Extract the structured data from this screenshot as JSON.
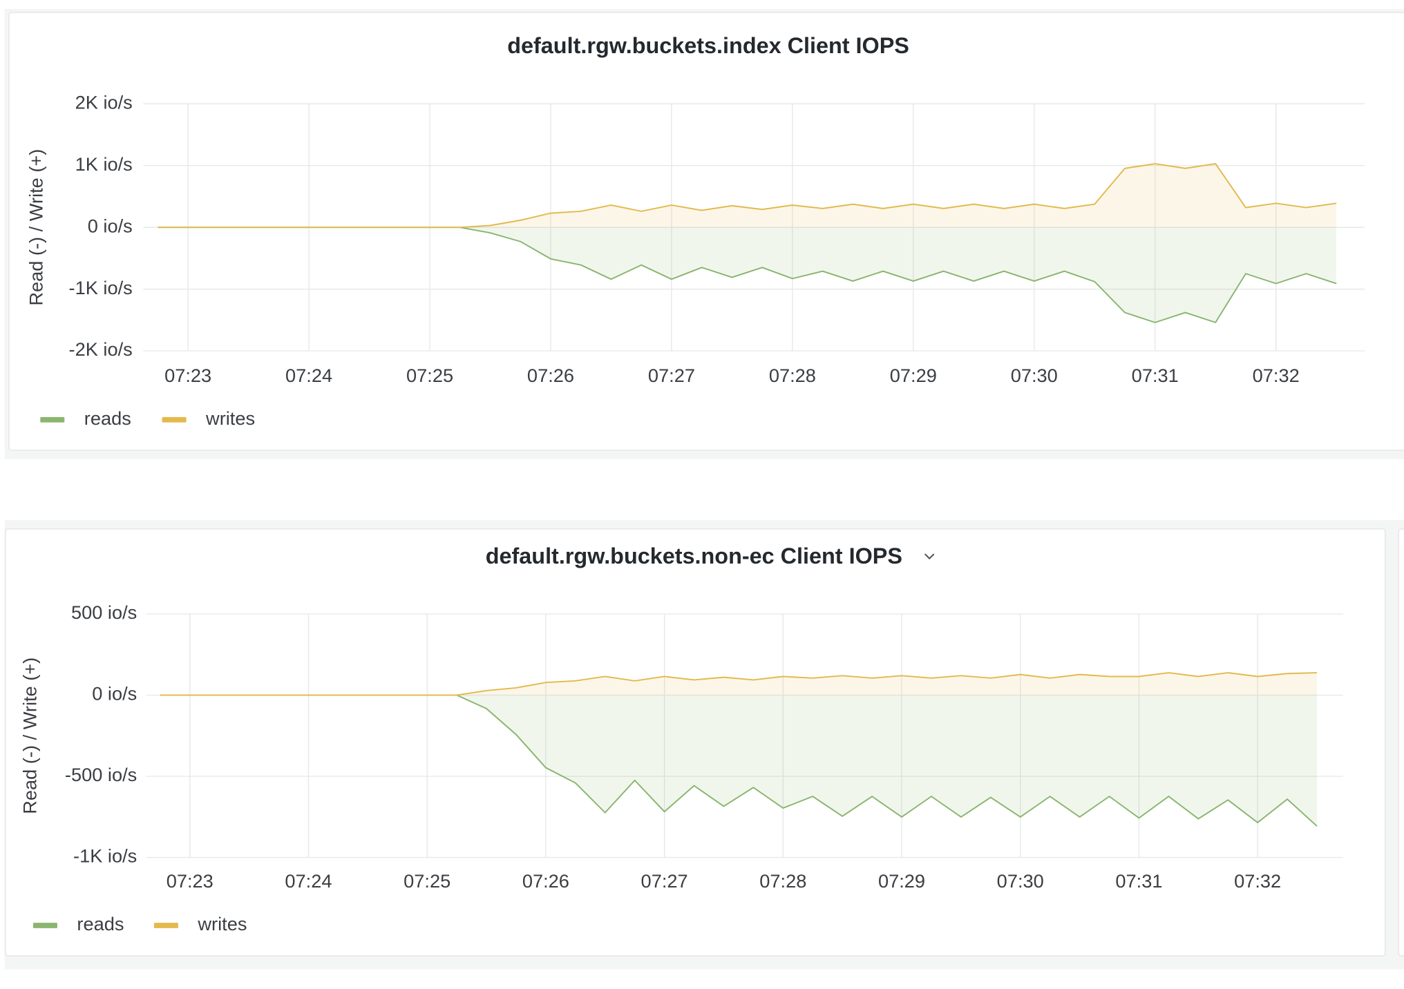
{
  "chart_data": [
    {
      "type": "line",
      "title": "default.rgw.buckets.index Client IOPS",
      "y_label": "Read (-) / Write (+)",
      "categories": [
        null,
        "07:23",
        null,
        null,
        null,
        "07:24",
        null,
        null,
        null,
        "07:25",
        null,
        null,
        null,
        "07:26",
        null,
        null,
        null,
        "07:27",
        null,
        null,
        null,
        "07:28",
        null,
        null,
        null,
        "07:29",
        null,
        null,
        null,
        "07:30",
        null,
        null,
        null,
        "07:31",
        null,
        null,
        null,
        "07:32",
        null,
        null
      ],
      "ylim": [
        -2000,
        2000
      ],
      "yticks": [
        {
          "value": -2000,
          "label": "-2K io/s"
        },
        {
          "value": -1000,
          "label": "-1K io/s"
        },
        {
          "value": 0,
          "label": "0 io/s"
        },
        {
          "value": 1000,
          "label": "1K io/s"
        },
        {
          "value": 2000,
          "label": "2K io/s"
        }
      ],
      "grid": true,
      "legend": "bottom-left",
      "series": [
        {
          "name": "reads",
          "color": "#8ab56f",
          "values": [
            0,
            0,
            0,
            0,
            0,
            0,
            0,
            0,
            0,
            0,
            0,
            -90,
            -230,
            -510,
            -610,
            -840,
            -610,
            -840,
            -650,
            -810,
            -650,
            -830,
            -710,
            -870,
            -710,
            -870,
            -710,
            -870,
            -710,
            -870,
            -710,
            -880,
            -1380,
            -1540,
            -1380,
            -1540,
            -750,
            -910,
            -750,
            -910
          ]
        },
        {
          "name": "writes",
          "color": "#e3b94c",
          "values": [
            0,
            0,
            0,
            0,
            0,
            0,
            0,
            0,
            0,
            0,
            0,
            30,
            115,
            230,
            260,
            360,
            260,
            360,
            275,
            350,
            290,
            360,
            305,
            375,
            305,
            375,
            305,
            375,
            305,
            375,
            305,
            375,
            955,
            1030,
            955,
            1030,
            320,
            390,
            320,
            390
          ]
        }
      ]
    },
    {
      "type": "line",
      "title": "default.rgw.buckets.non-ec Client IOPS",
      "y_label": "Read (-) / Write (+)",
      "categories": [
        null,
        "07:23",
        null,
        null,
        null,
        "07:24",
        null,
        null,
        null,
        "07:25",
        null,
        null,
        null,
        "07:26",
        null,
        null,
        null,
        "07:27",
        null,
        null,
        null,
        "07:28",
        null,
        null,
        null,
        "07:29",
        null,
        null,
        null,
        "07:30",
        null,
        null,
        null,
        "07:31",
        null,
        null,
        null,
        "07:32",
        null,
        null
      ],
      "ylim": [
        -1000,
        500
      ],
      "yticks": [
        {
          "value": -1000,
          "label": "-1K io/s"
        },
        {
          "value": -500,
          "label": "-500 io/s"
        },
        {
          "value": 0,
          "label": "0 io/s"
        },
        {
          "value": 500,
          "label": "500 io/s"
        }
      ],
      "grid": true,
      "legend": "bottom-left",
      "series": [
        {
          "name": "reads",
          "color": "#8ab56f",
          "values": [
            0,
            0,
            0,
            0,
            0,
            0,
            0,
            0,
            0,
            0,
            0,
            -83,
            -243,
            -447,
            -541,
            -724,
            -525,
            -718,
            -558,
            -685,
            -569,
            -696,
            -624,
            -746,
            -624,
            -751,
            -624,
            -751,
            -630,
            -751,
            -624,
            -751,
            -624,
            -757,
            -624,
            -762,
            -646,
            -785,
            -641,
            -807
          ]
        },
        {
          "name": "writes",
          "color": "#e3b94c",
          "values": [
            0,
            0,
            0,
            0,
            0,
            0,
            0,
            0,
            0,
            0,
            0,
            28,
            45,
            78,
            88,
            115,
            88,
            115,
            94,
            110,
            94,
            115,
            105,
            120,
            105,
            120,
            105,
            120,
            105,
            127,
            105,
            127,
            115,
            115,
            138,
            115,
            138,
            115,
            133,
            138
          ]
        }
      ]
    }
  ]
}
